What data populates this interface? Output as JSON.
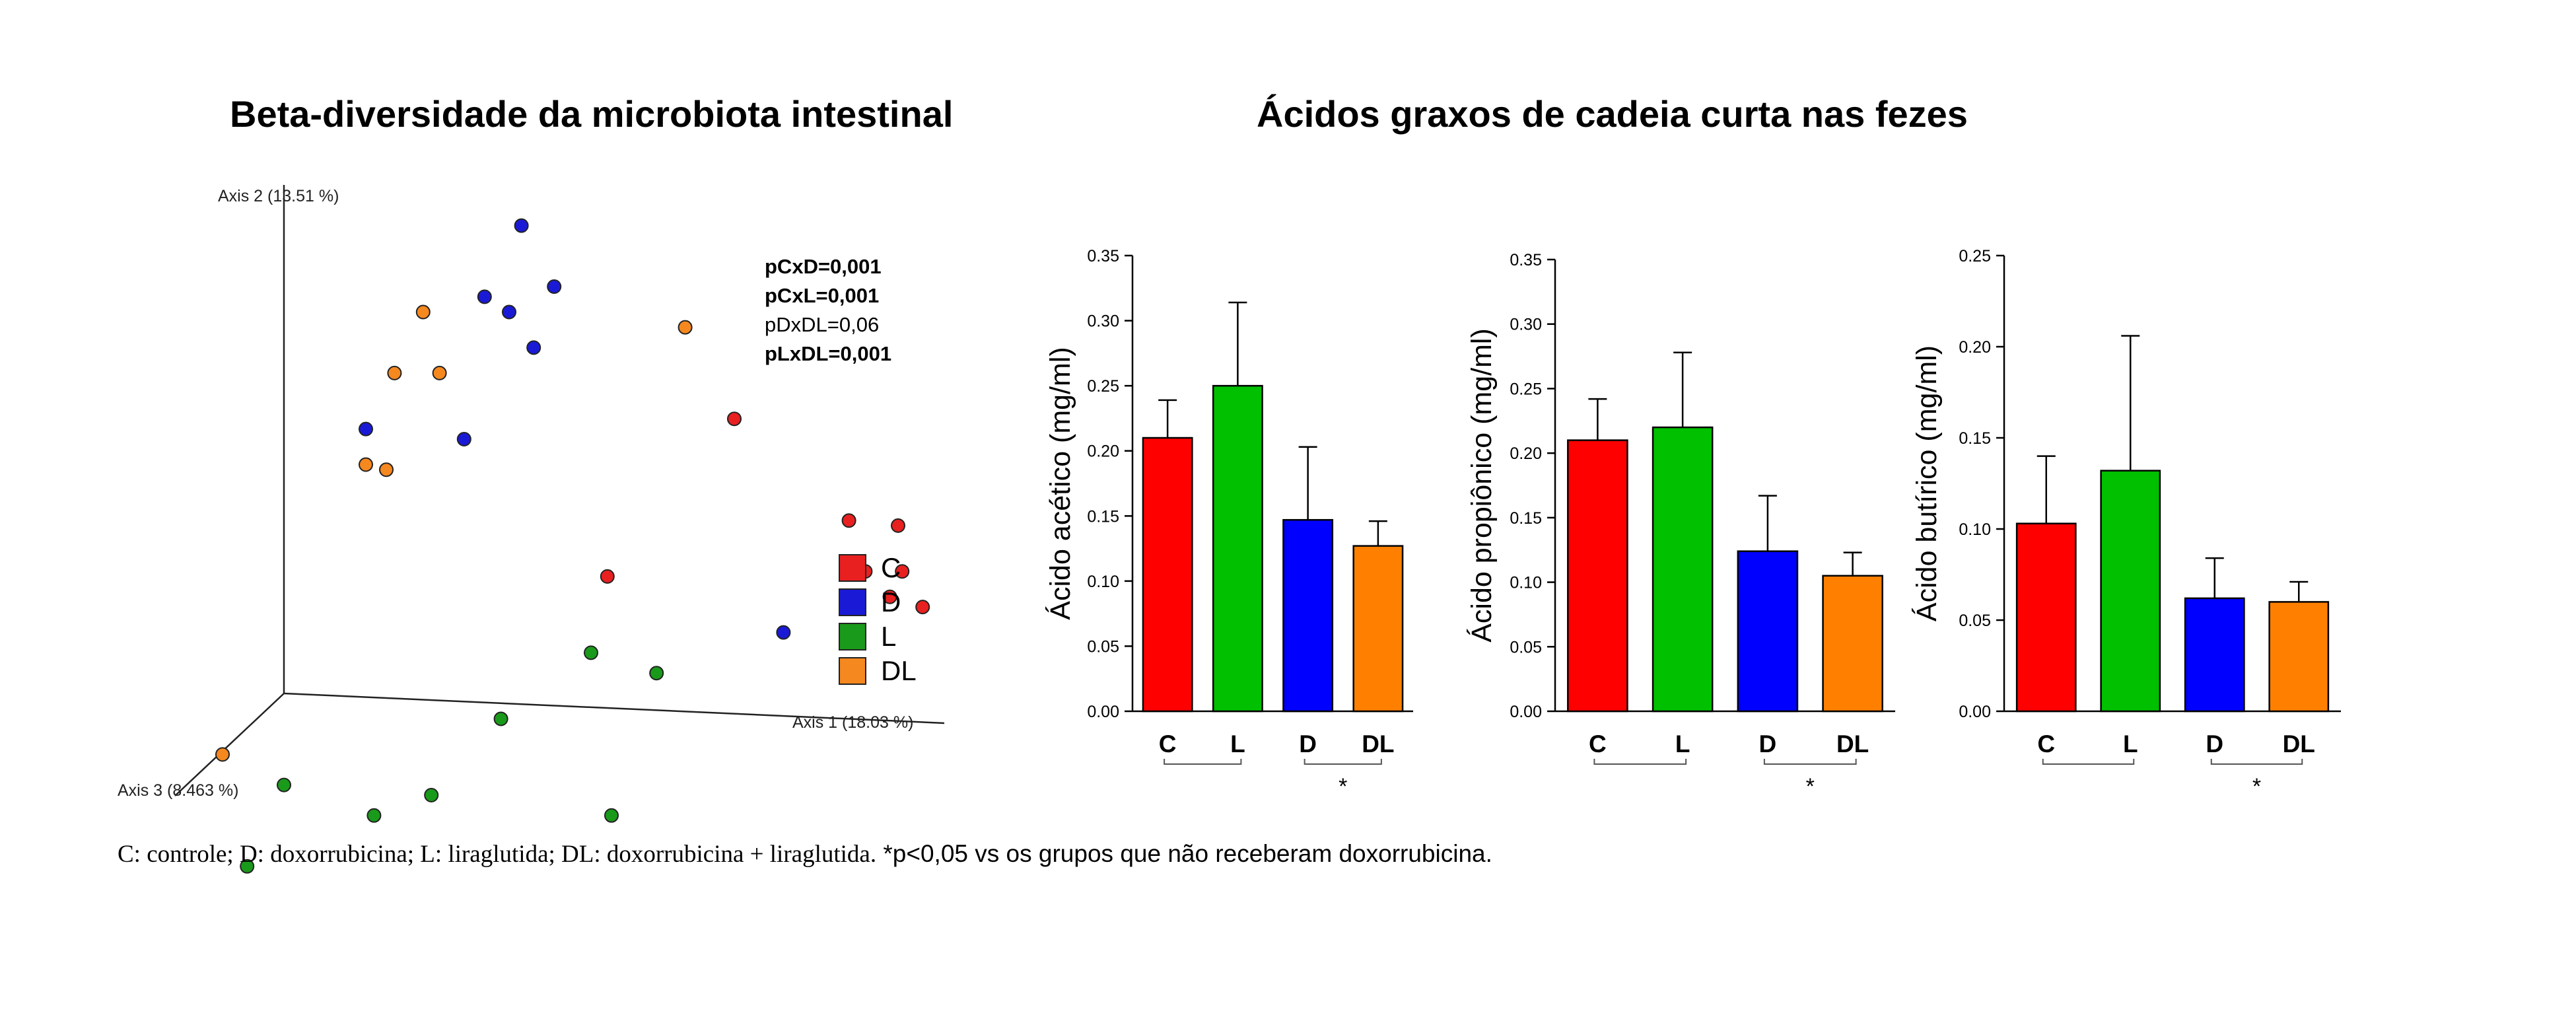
{
  "titles": {
    "pcoa": "Beta-diversidade da microbiota intestinal",
    "scfa": "Ácidos graxos de cadeia curta nas fezes"
  },
  "caption": {
    "part1": "C: controle; D: doxorrubicina; L: liraglutida; DL: doxorrubicina + liraglutida.",
    "part2": " *p<0,05 vs os grupos que não receberam doxorrubicina."
  },
  "colors": {
    "C": "#e82020",
    "D": "#1a1ad6",
    "L": "#1a9a1a",
    "DL": "#f5881f",
    "bar_C": "#ff0000",
    "bar_L": "#00c000",
    "bar_D": "#0000ff",
    "bar_DL": "#ff8000"
  },
  "chart_data": [
    {
      "type": "scatter",
      "subtype": "pcoa-3d",
      "title": "Beta-diversidade da microbiota intestinal",
      "axes": {
        "x": "Axis 1 (18.03 %)",
        "y": "Axis 2 (13.51 %)",
        "z": "Axis 3 (8.463 %)"
      },
      "legend": [
        {
          "label": "C",
          "color": "#e82020"
        },
        {
          "label": "D",
          "color": "#1a1ad6"
        },
        {
          "label": "L",
          "color": "#1a9a1a"
        },
        {
          "label": "DL",
          "color": "#f5881f"
        }
      ],
      "annotations": [
        {
          "text": "pCxD=0,001",
          "bold": true
        },
        {
          "text": "pCxL=0,001",
          "bold": true
        },
        {
          "text": "pDxDL=0,06",
          "bold": false
        },
        {
          "text": "pLxDL=0,001",
          "bold": true
        }
      ],
      "points": [
        {
          "group": "D",
          "x": 0.58,
          "y": 0.92
        },
        {
          "group": "D",
          "x": 0.49,
          "y": 0.78
        },
        {
          "group": "D",
          "x": 0.55,
          "y": 0.75
        },
        {
          "group": "D",
          "x": 0.66,
          "y": 0.8
        },
        {
          "group": "D",
          "x": 0.61,
          "y": 0.68
        },
        {
          "group": "D",
          "x": 0.2,
          "y": 0.52
        },
        {
          "group": "D",
          "x": 0.44,
          "y": 0.5
        },
        {
          "group": "D",
          "x": 1.22,
          "y": 0.12
        },
        {
          "group": "DL",
          "x": 0.34,
          "y": 0.75
        },
        {
          "group": "DL",
          "x": 0.98,
          "y": 0.72
        },
        {
          "group": "DL",
          "x": 0.27,
          "y": 0.63
        },
        {
          "group": "DL",
          "x": 0.38,
          "y": 0.63
        },
        {
          "group": "DL",
          "x": 0.2,
          "y": 0.45
        },
        {
          "group": "DL",
          "x": 0.25,
          "y": 0.44
        },
        {
          "group": "DL",
          "x": -0.15,
          "y": -0.12
        },
        {
          "group": "C",
          "x": 1.1,
          "y": 0.54
        },
        {
          "group": "C",
          "x": 1.38,
          "y": 0.34
        },
        {
          "group": "C",
          "x": 1.5,
          "y": 0.33
        },
        {
          "group": "C",
          "x": 1.42,
          "y": 0.24
        },
        {
          "group": "C",
          "x": 1.51,
          "y": 0.24
        },
        {
          "group": "C",
          "x": 1.48,
          "y": 0.19
        },
        {
          "group": "C",
          "x": 1.56,
          "y": 0.17
        },
        {
          "group": "C",
          "x": 0.79,
          "y": 0.23
        },
        {
          "group": "L",
          "x": 0.75,
          "y": 0.08
        },
        {
          "group": "L",
          "x": 0.91,
          "y": 0.04
        },
        {
          "group": "L",
          "x": 0.53,
          "y": -0.05
        },
        {
          "group": "L",
          "x": 0.0,
          "y": -0.18
        },
        {
          "group": "L",
          "x": 0.22,
          "y": -0.24
        },
        {
          "group": "L",
          "x": 0.36,
          "y": -0.2
        },
        {
          "group": "L",
          "x": 0.8,
          "y": -0.24
        },
        {
          "group": "L",
          "x": -0.09,
          "y": -0.34
        }
      ]
    },
    {
      "type": "bar",
      "ylabel": "Ácido acético (mg/ml)",
      "categories": [
        "C",
        "L",
        "D",
        "DL"
      ],
      "values": [
        0.21,
        0.25,
        0.147,
        0.127
      ],
      "errors": [
        0.029,
        0.064,
        0.056,
        0.019
      ],
      "ylim": [
        0,
        0.35
      ],
      "yticks": [
        "0.00",
        "0.05",
        "0.10",
        "0.15",
        "0.20",
        "0.25",
        "0.30",
        "0.35"
      ],
      "significance": "*"
    },
    {
      "type": "bar",
      "ylabel": "Ácido propiônico (mg/ml)",
      "categories": [
        "C",
        "L",
        "D",
        "DL"
      ],
      "values": [
        0.21,
        0.22,
        0.124,
        0.105
      ],
      "errors": [
        0.032,
        0.058,
        0.043,
        0.018
      ],
      "ylim": [
        0,
        0.35
      ],
      "yticks": [
        "0.00",
        "0.05",
        "0.10",
        "0.15",
        "0.20",
        "0.25",
        "0.30",
        "0.35"
      ],
      "significance": "*"
    },
    {
      "type": "bar",
      "ylabel": "Ácido butírico (mg/ml)",
      "categories": [
        "C",
        "L",
        "D",
        "DL"
      ],
      "values": [
        0.103,
        0.132,
        0.062,
        0.06
      ],
      "errors": [
        0.037,
        0.074,
        0.022,
        0.011
      ],
      "ylim": [
        0,
        0.25
      ],
      "yticks": [
        "0.00",
        "0.05",
        "0.10",
        "0.15",
        "0.20",
        "0.25"
      ],
      "significance": "*"
    }
  ]
}
